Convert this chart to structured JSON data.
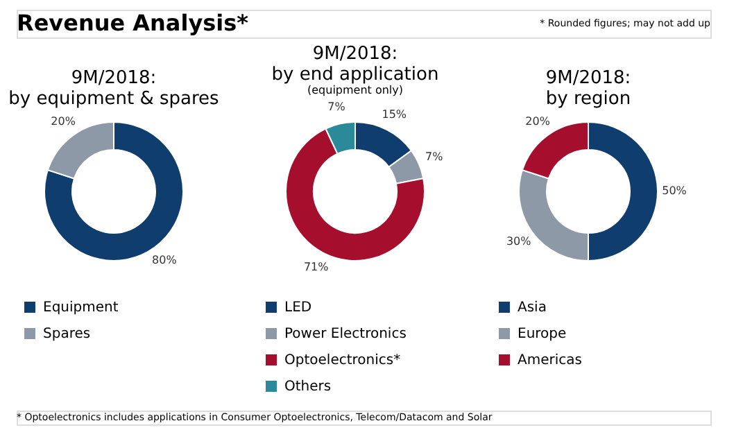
{
  "chart_data": [
    {
      "type": "donut",
      "title": "9M/2018:",
      "subtitle": "by equipment & spares",
      "categories": [
        "Equipment",
        "Spares"
      ],
      "values": [
        80,
        20
      ],
      "colors": [
        "#0f3d6e",
        "#8d99a6"
      ],
      "value_labels": [
        "80%",
        "20%"
      ],
      "legend": "bottom",
      "annotations": [
        "Revenue Analysis*",
        "* Optoelectronics includes applications in Consumer Optoelectronics, Telecom/Datacom and Solar"
      ]
    },
    {
      "type": "donut",
      "title": "9M/2018:",
      "subtitle": "by end application",
      "categories": [
        "LED",
        "Power Electronics",
        "Optoelectronics*",
        "Others"
      ],
      "values": [
        15,
        7,
        71,
        7
      ],
      "colors": [
        "#0f3d6e",
        "#8d99a6",
        "#a50f2d",
        "#2a8a9a"
      ],
      "value_labels": [
        "15%",
        "7%",
        "71%",
        "7%"
      ],
      "legend": "bottom",
      "annotations": [
        "(equipment only)"
      ]
    },
    {
      "type": "donut",
      "title": "9M/2018:",
      "subtitle": "by region",
      "categories": [
        "Asia",
        "Europe",
        "Americas"
      ],
      "values": [
        50,
        30,
        20
      ],
      "colors": [
        "#0f3d6e",
        "#8d99a6",
        "#a50f2d"
      ],
      "value_labels": [
        "50%",
        "30%",
        "20%"
      ],
      "legend": "bottom",
      "annotations": [
        "* Rounded figures; may not add up"
      ]
    }
  ]
}
